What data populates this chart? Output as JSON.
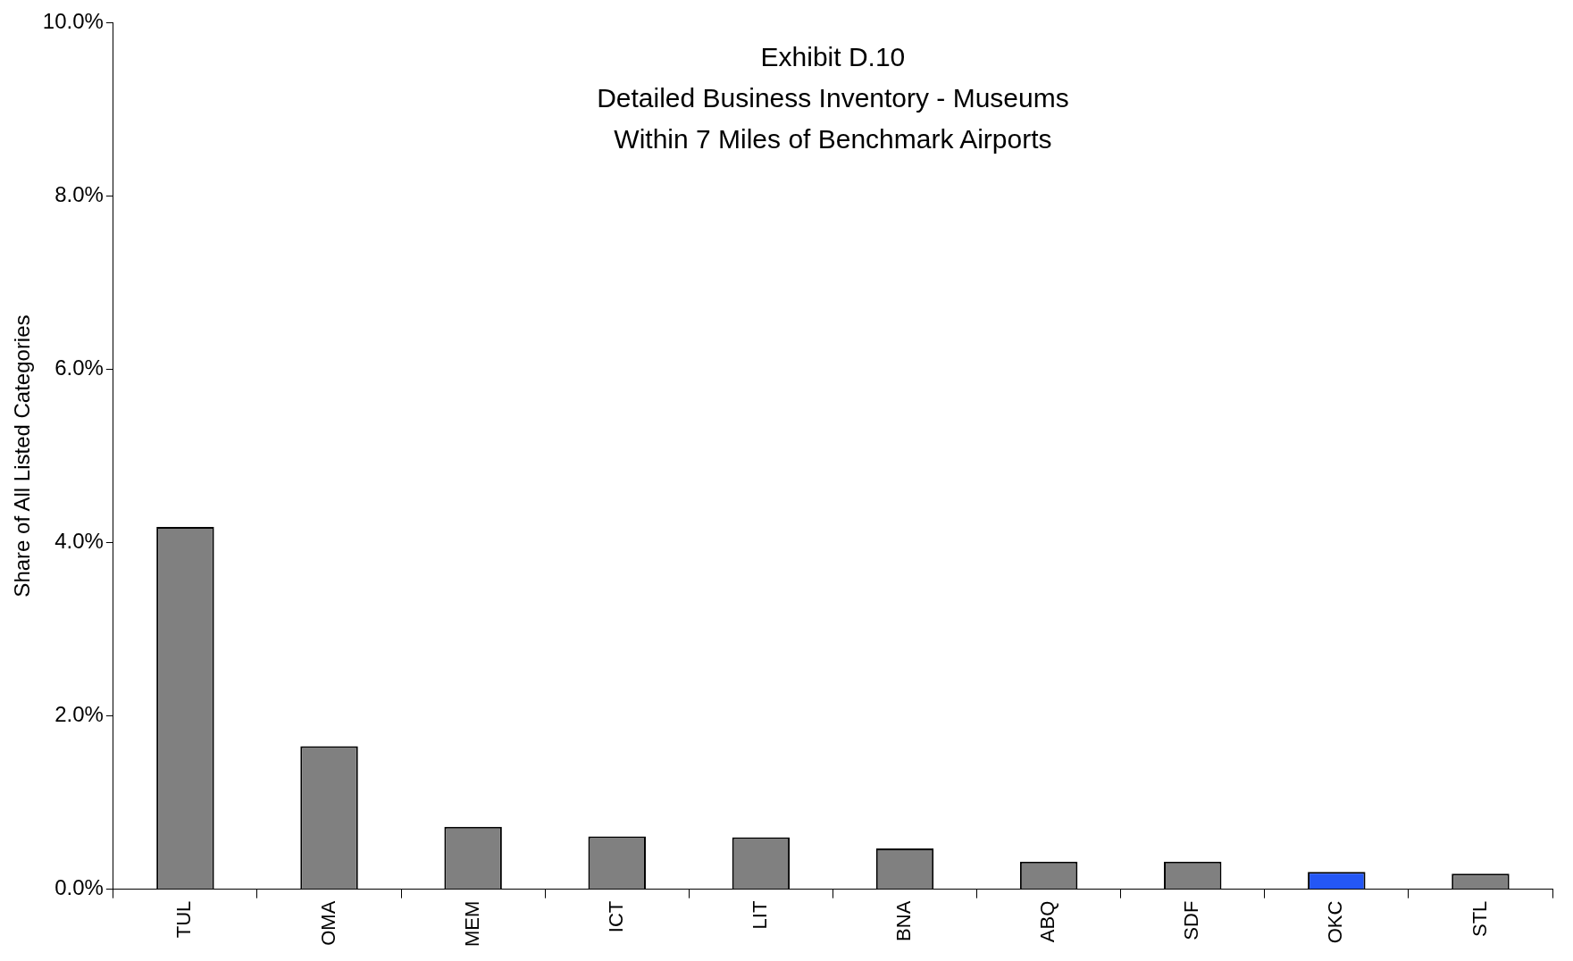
{
  "chart_data": {
    "type": "bar",
    "title": "Exhibit D.10\nDetailed Business Inventory - Museums\nWithin 7 Miles of Benchmark Airports",
    "ylabel": "Share of All Listed Categories",
    "categories": [
      "TUL",
      "OMA",
      "MEM",
      "ICT",
      "LIT",
      "BNA",
      "ABQ",
      "SDF",
      "OKC",
      "STL"
    ],
    "values": [
      4.18,
      1.65,
      0.72,
      0.61,
      0.6,
      0.47,
      0.32,
      0.32,
      0.2,
      0.18
    ],
    "colors": [
      "#808080",
      "#808080",
      "#808080",
      "#808080",
      "#808080",
      "#808080",
      "#808080",
      "#808080",
      "#2457f5",
      "#808080"
    ],
    "ylim": [
      0,
      10
    ],
    "yticks": [
      {
        "value": 0,
        "label": "0.0%"
      },
      {
        "value": 2,
        "label": "2.0%"
      },
      {
        "value": 4,
        "label": "4.0%"
      },
      {
        "value": 6,
        "label": "6.0%"
      },
      {
        "value": 8,
        "label": "8.0%"
      },
      {
        "value": 10,
        "label": "10.0%"
      }
    ],
    "grid": false,
    "legend": false
  }
}
